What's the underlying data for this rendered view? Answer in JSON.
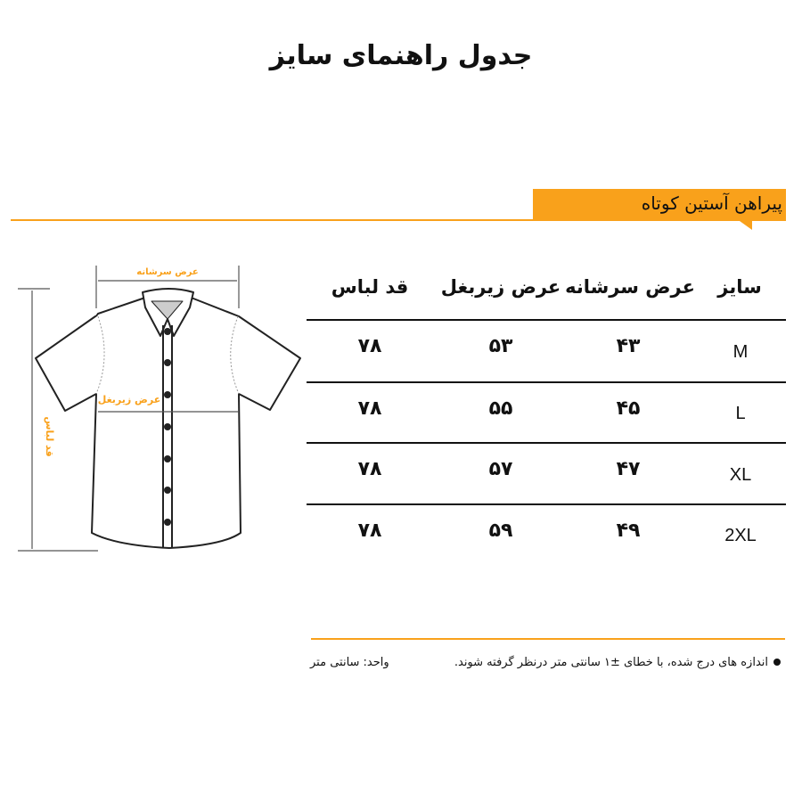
{
  "title": "جدول راهنمای سایز",
  "subtitle": "پیراهن آستین کوتاه",
  "accent_color": "#f9a11b",
  "diagram": {
    "shoulder_label": "عرض سرشانه",
    "armpit_label": "عرض زیربغل",
    "length_label": "قد لباس"
  },
  "table": {
    "headers": [
      "سایز",
      "عرض سرشانه",
      "عرض زیربغل",
      "قد لباس"
    ],
    "rows": [
      {
        "size": "M",
        "shoulder": "۴۳",
        "armpit": "۵۳",
        "length": "۷۸"
      },
      {
        "size": "L",
        "shoulder": "۴۵",
        "armpit": "۵۵",
        "length": "۷۸"
      },
      {
        "size": "XL",
        "shoulder": "۴۷",
        "armpit": "۵۷",
        "length": "۷۸"
      },
      {
        "size": "2XL",
        "shoulder": "۴۹",
        "armpit": "۵۹",
        "length": "۷۸"
      }
    ]
  },
  "footer": {
    "note": "اندازه های درج شده، با خطای ±۱ سانتی متر درنظر گرفته شوند.",
    "unit": "واحد: سانتی متر"
  }
}
